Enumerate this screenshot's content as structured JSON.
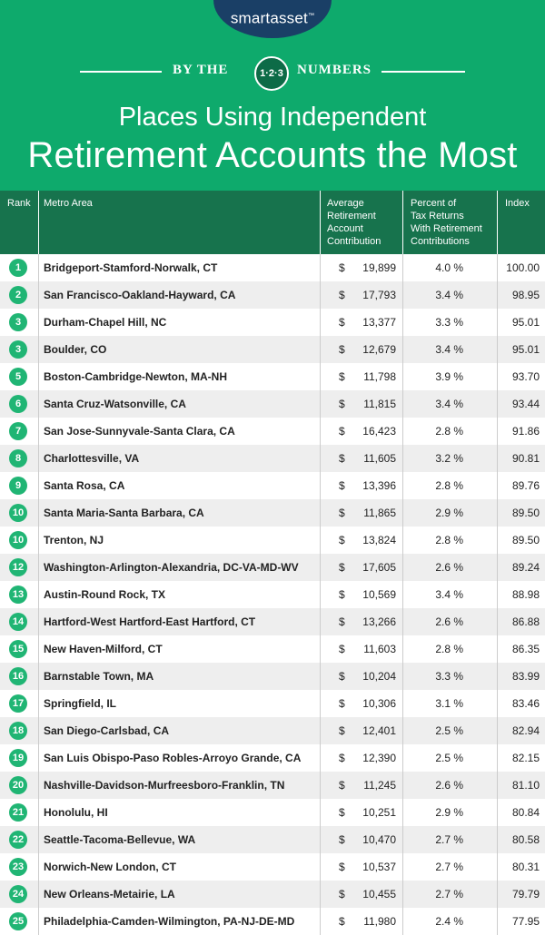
{
  "brand": {
    "logo": "smartasset",
    "tm": "™"
  },
  "banner": {
    "left": "BY THE",
    "badge": "1·2·3",
    "right": "NUMBERS"
  },
  "title": {
    "line1": "Places Using Independent",
    "line2": "Retirement Accounts the Most"
  },
  "colors": {
    "header_bg": "#0eaa6c",
    "table_head": "#17734d",
    "rank_circle": "#20b574",
    "logo_bg": "#1a3f66"
  },
  "table": {
    "headers": {
      "rank": "Rank",
      "metro": "Metro Area",
      "contribution": [
        "Average",
        "Retirement",
        "Account",
        "Contribution"
      ],
      "percent": [
        "Percent of",
        "Tax Returns",
        "With Retirement",
        "Contributions"
      ],
      "index": "Index"
    },
    "rows": [
      {
        "rank": "1",
        "metro": "Bridgeport-Stamford-Norwalk, CT",
        "contribution": "19,899",
        "percent": "4.0 %",
        "index": "100.00"
      },
      {
        "rank": "2",
        "metro": "San Francisco-Oakland-Hayward, CA",
        "contribution": "17,793",
        "percent": "3.4 %",
        "index": "98.95"
      },
      {
        "rank": "3",
        "metro": "Durham-Chapel Hill, NC",
        "contribution": "13,377",
        "percent": "3.3 %",
        "index": "95.01"
      },
      {
        "rank": "3",
        "metro": "Boulder, CO",
        "contribution": "12,679",
        "percent": "3.4 %",
        "index": "95.01"
      },
      {
        "rank": "5",
        "metro": "Boston-Cambridge-Newton, MA-NH",
        "contribution": "11,798",
        "percent": "3.9 %",
        "index": "93.70"
      },
      {
        "rank": "6",
        "metro": "Santa Cruz-Watsonville, CA",
        "contribution": "11,815",
        "percent": "3.4 %",
        "index": "93.44"
      },
      {
        "rank": "7",
        "metro": "San Jose-Sunnyvale-Santa Clara, CA",
        "contribution": "16,423",
        "percent": "2.8 %",
        "index": "91.86"
      },
      {
        "rank": "8",
        "metro": "Charlottesville, VA",
        "contribution": "11,605",
        "percent": "3.2 %",
        "index": "90.81"
      },
      {
        "rank": "9",
        "metro": "Santa Rosa, CA",
        "contribution": "13,396",
        "percent": "2.8 %",
        "index": "89.76"
      },
      {
        "rank": "10",
        "metro": "Santa Maria-Santa Barbara, CA",
        "contribution": "11,865",
        "percent": "2.9 %",
        "index": "89.50"
      },
      {
        "rank": "10",
        "metro": "Trenton, NJ",
        "contribution": "13,824",
        "percent": "2.8 %",
        "index": "89.50"
      },
      {
        "rank": "12",
        "metro": "Washington-Arlington-Alexandria, DC-VA-MD-WV",
        "contribution": "17,605",
        "percent": "2.6 %",
        "index": "89.24"
      },
      {
        "rank": "13",
        "metro": "Austin-Round Rock, TX",
        "contribution": "10,569",
        "percent": "3.4 %",
        "index": "88.98"
      },
      {
        "rank": "14",
        "metro": "Hartford-West Hartford-East Hartford, CT",
        "contribution": "13,266",
        "percent": "2.6 %",
        "index": "86.88"
      },
      {
        "rank": "15",
        "metro": "New Haven-Milford, CT",
        "contribution": "11,603",
        "percent": "2.8 %",
        "index": "86.35"
      },
      {
        "rank": "16",
        "metro": "Barnstable Town, MA",
        "contribution": "10,204",
        "percent": "3.3 %",
        "index": "83.99"
      },
      {
        "rank": "17",
        "metro": "Springfield, IL",
        "contribution": "10,306",
        "percent": "3.1 %",
        "index": "83.46"
      },
      {
        "rank": "18",
        "metro": "San Diego-Carlsbad, CA",
        "contribution": "12,401",
        "percent": "2.5 %",
        "index": "82.94"
      },
      {
        "rank": "19",
        "metro": "San Luis Obispo-Paso Robles-Arroyo Grande, CA",
        "contribution": "12,390",
        "percent": "2.5 %",
        "index": "82.15"
      },
      {
        "rank": "20",
        "metro": "Nashville-Davidson-Murfreesboro-Franklin, TN",
        "contribution": "11,245",
        "percent": "2.6 %",
        "index": "81.10"
      },
      {
        "rank": "21",
        "metro": "Honolulu, HI",
        "contribution": "10,251",
        "percent": "2.9 %",
        "index": "80.84"
      },
      {
        "rank": "22",
        "metro": "Seattle-Tacoma-Bellevue, WA",
        "contribution": "10,470",
        "percent": "2.7 %",
        "index": "80.58"
      },
      {
        "rank": "23",
        "metro": "Norwich-New London, CT",
        "contribution": "10,537",
        "percent": "2.7 %",
        "index": "80.31"
      },
      {
        "rank": "24",
        "metro": "New Orleans-Metairie, LA",
        "contribution": "10,455",
        "percent": "2.7 %",
        "index": "79.79"
      },
      {
        "rank": "25",
        "metro": "Philadelphia-Camden-Wilmington, PA-NJ-DE-MD",
        "contribution": "11,980",
        "percent": "2.4 %",
        "index": "77.95"
      }
    ],
    "currency": "$"
  }
}
